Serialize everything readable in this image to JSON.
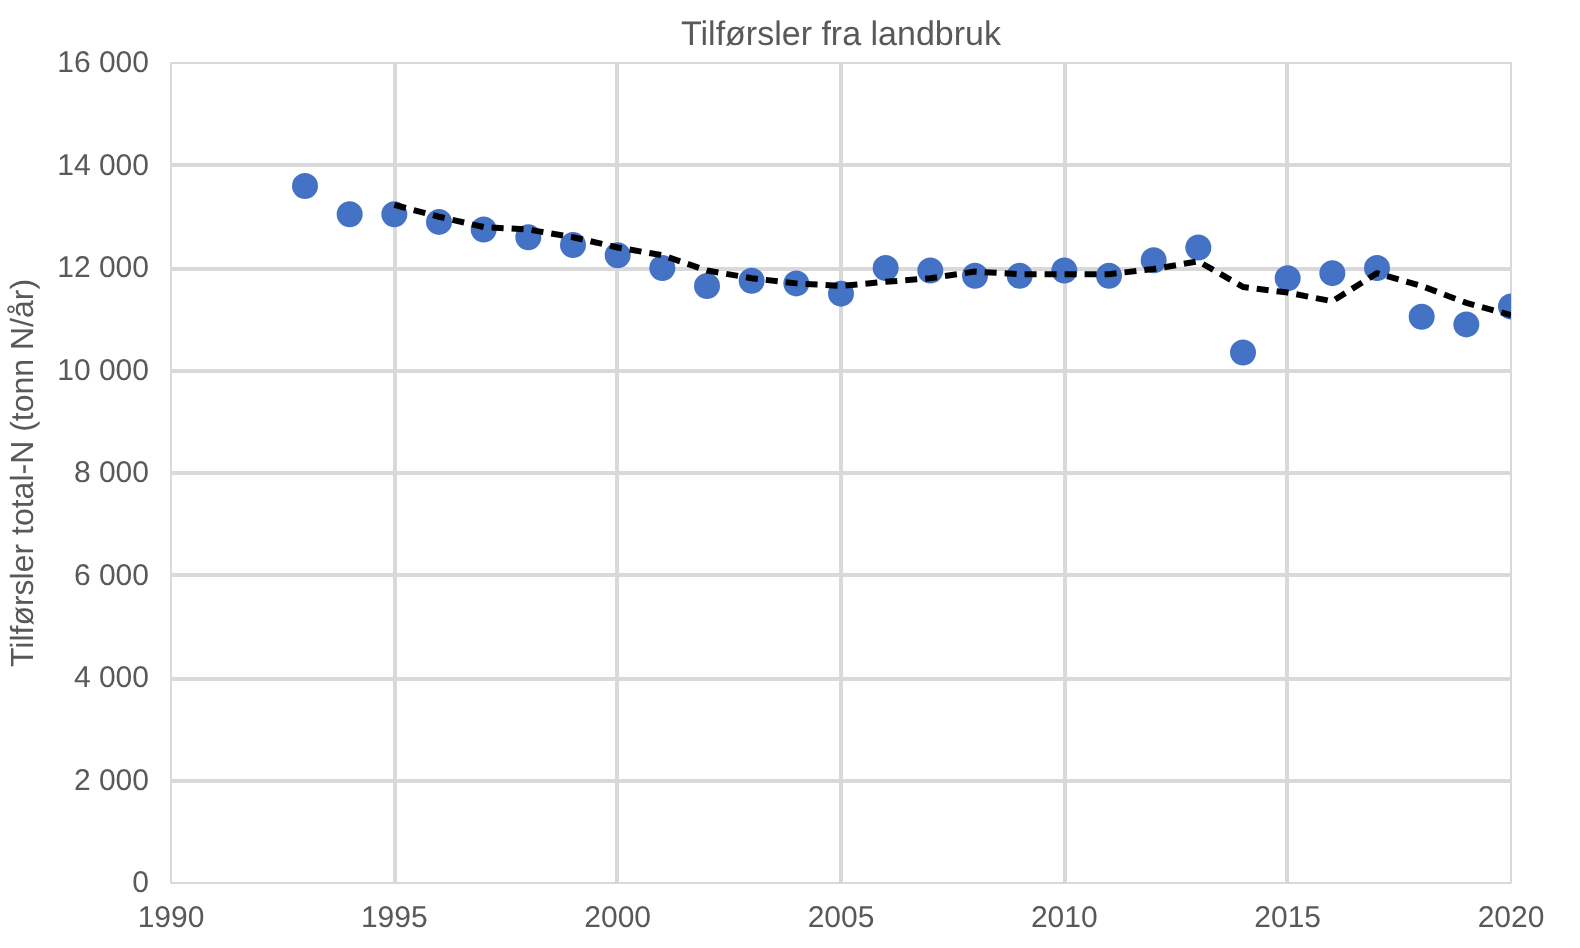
{
  "chart_data": {
    "type": "scatter",
    "title": "Tilførsler fra landbruk",
    "ylabel": "Tilførsler total-N (tonn N/år)",
    "xlim": [
      1990,
      2020
    ],
    "xticks": [
      1990,
      1995,
      2000,
      2005,
      2010,
      2015,
      2020
    ],
    "ylim": [
      0,
      16000
    ],
    "yticks": [
      {
        "value": 0,
        "label": "0"
      },
      {
        "value": 2000,
        "label": "2 000"
      },
      {
        "value": 4000,
        "label": "4 000"
      },
      {
        "value": 6000,
        "label": "6 000"
      },
      {
        "value": 8000,
        "label": "8 000"
      },
      {
        "value": 10000,
        "label": "10 000"
      },
      {
        "value": 12000,
        "label": "12 000"
      },
      {
        "value": 14000,
        "label": "14 000"
      },
      {
        "value": 16000,
        "label": "16 000"
      }
    ],
    "grid": true,
    "marker": "circle",
    "series": [
      {
        "color": "#4472c4",
        "x": [
          1993,
          1994,
          1995,
          1996,
          1997,
          1998,
          1999,
          2000,
          2001,
          2002,
          2003,
          2004,
          2005,
          2006,
          2007,
          2008,
          2009,
          2010,
          2011,
          2012,
          2013,
          2014,
          2015,
          2016,
          2017,
          2018,
          2019,
          2020
        ],
        "values": [
          13600,
          13050,
          13050,
          12900,
          12750,
          12600,
          12450,
          12250,
          12000,
          11650,
          11750,
          11700,
          11500,
          12000,
          11950,
          11850,
          11850,
          11950,
          11850,
          12150,
          12400,
          10350,
          11800,
          11900,
          12000,
          11050,
          10900,
          11250
        ]
      },
      {
        "type": "line",
        "color": "#000000",
        "line_style": "dashed",
        "marker": "none",
        "x": [
          1995,
          1996,
          1997,
          1998,
          1999,
          2000,
          2001,
          2002,
          2003,
          2004,
          2005,
          2006,
          2007,
          2008,
          2009,
          2010,
          2011,
          2012,
          2013,
          2014,
          2015,
          2016,
          2017,
          2018,
          2019,
          2020
        ],
        "values": [
          13230,
          13000,
          12800,
          12750,
          12600,
          12400,
          12250,
          11950,
          11800,
          11700,
          11650,
          11730,
          11800,
          11930,
          11880,
          11880,
          11880,
          11980,
          12130,
          11630,
          11520,
          11350,
          11900,
          11650,
          11320,
          11080
        ]
      }
    ]
  }
}
